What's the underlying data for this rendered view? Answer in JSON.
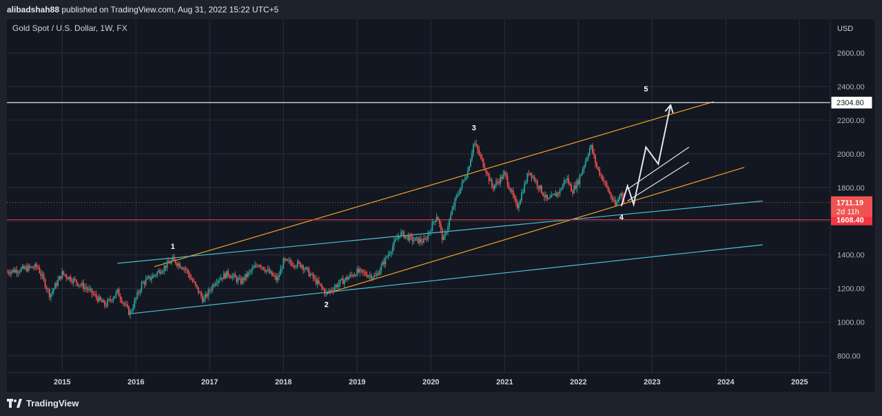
{
  "publisher": {
    "username": "alibadshah88",
    "text": " published on TradingView.com, Aug 31, 2022 15:22 UTC+5"
  },
  "footer": {
    "brand": "TradingView",
    "logo_icon": "tradingview-logo-icon"
  },
  "colors": {
    "up": "#26a69a",
    "down": "#ef5350",
    "trend_orange": "#f5a623",
    "trend_cyan": "#4dc3d6",
    "resistance": "#ffffff",
    "support": "#f23645",
    "grid": "#2a2e39"
  },
  "chart_data": {
    "type": "candlestick",
    "title": "Gold Spot / U.S. Dollar, 1W, FX",
    "currency": "USD",
    "ylim": [
      700,
      2800
    ],
    "xlim": [
      "2014-04",
      "2025-06"
    ],
    "y_ticks": [
      "800.00",
      "1000.00",
      "1200.00",
      "1400.00",
      "1600.00",
      "1800.00",
      "2000.00",
      "2200.00",
      "2400.00",
      "2600.00"
    ],
    "x_ticks": [
      "2015",
      "2016",
      "2017",
      "2018",
      "2019",
      "2020",
      "2021",
      "2022",
      "2023",
      "2024",
      "2025"
    ],
    "grid": true,
    "price_path": [
      [
        "2014-04",
        1300
      ],
      [
        "2014-09",
        1330
      ],
      [
        "2014-11",
        1160
      ],
      [
        "2015-01",
        1290
      ],
      [
        "2015-05",
        1200
      ],
      [
        "2015-08",
        1100
      ],
      [
        "2015-10",
        1180
      ],
      [
        "2015-12",
        1050
      ],
      [
        "2016-02",
        1230
      ],
      [
        "2016-04",
        1280
      ],
      [
        "2016-07",
        1370
      ],
      [
        "2016-09",
        1320
      ],
      [
        "2016-12",
        1130
      ],
      [
        "2017-02",
        1250
      ],
      [
        "2017-04",
        1290
      ],
      [
        "2017-06",
        1240
      ],
      [
        "2017-09",
        1350
      ],
      [
        "2017-12",
        1250
      ],
      [
        "2018-01",
        1360
      ],
      [
        "2018-04",
        1340
      ],
      [
        "2018-08",
        1170
      ],
      [
        "2018-10",
        1230
      ],
      [
        "2019-01",
        1300
      ],
      [
        "2019-04",
        1270
      ],
      [
        "2019-06",
        1400
      ],
      [
        "2019-08",
        1530
      ],
      [
        "2019-10",
        1490
      ],
      [
        "2019-12",
        1480
      ],
      [
        "2020-02",
        1640
      ],
      [
        "2020-03",
        1480
      ],
      [
        "2020-05",
        1730
      ],
      [
        "2020-07",
        1900
      ],
      [
        "2020-08",
        2070
      ],
      [
        "2020-10",
        1900
      ],
      [
        "2020-11",
        1800
      ],
      [
        "2021-01",
        1880
      ],
      [
        "2021-03",
        1680
      ],
      [
        "2021-05",
        1900
      ],
      [
        "2021-07",
        1780
      ],
      [
        "2021-08",
        1720
      ],
      [
        "2021-10",
        1780
      ],
      [
        "2021-11",
        1860
      ],
      [
        "2021-12",
        1780
      ],
      [
        "2022-01",
        1840
      ],
      [
        "2022-03",
        2050
      ],
      [
        "2022-04",
        1920
      ],
      [
        "2022-05",
        1850
      ],
      [
        "2022-07",
        1690
      ],
      [
        "2022-08",
        1780
      ],
      [
        "2022-08-31",
        1711.19
      ]
    ],
    "trendlines": [
      {
        "name": "orange-upper",
        "from": [
          "2016-04",
          1330
        ],
        "to": [
          "2023-11",
          2310
        ]
      },
      {
        "name": "orange-lower",
        "from": [
          "2018-08",
          1170
        ],
        "to": [
          "2024-04",
          1920
        ]
      },
      {
        "name": "cyan-upper",
        "from": [
          "2015-10",
          1350
        ],
        "to": [
          "2024-07",
          1720
        ]
      },
      {
        "name": "cyan-lower",
        "from": [
          "2015-12",
          1050
        ],
        "to": [
          "2024-07",
          1460
        ]
      }
    ],
    "projection": [
      [
        "2022-08",
        1690
      ],
      [
        "2022-09",
        1810
      ],
      [
        "2022-10",
        1700
      ],
      [
        "2022-12",
        2040
      ],
      [
        "2023-02",
        1940
      ],
      [
        "2023-04",
        2290
      ]
    ],
    "channel_lines": [
      {
        "from": [
          "2022-09",
          1790
        ],
        "to": [
          "2023-07",
          2040
        ]
      },
      {
        "from": [
          "2022-09",
          1720
        ],
        "to": [
          "2023-07",
          1950
        ]
      }
    ],
    "horizontal_levels": [
      {
        "value": 2304.8,
        "label": "2304.80",
        "style": "resistance"
      },
      {
        "value": 1608.4,
        "label": "1608.40",
        "style": "support"
      },
      {
        "value": 1711.19,
        "label": "1711.19",
        "countdown": "2d 11h",
        "style": "current"
      }
    ],
    "wave_labels": [
      {
        "text": "1",
        "x": "2016-07",
        "y": 1435
      },
      {
        "text": "2",
        "x": "2018-08",
        "y": 1090
      },
      {
        "text": "3",
        "x": "2020-08",
        "y": 2140
      },
      {
        "text": "4",
        "x": "2022-08",
        "y": 1610
      },
      {
        "text": "5",
        "x": "2022-12",
        "y": 2370
      }
    ]
  }
}
